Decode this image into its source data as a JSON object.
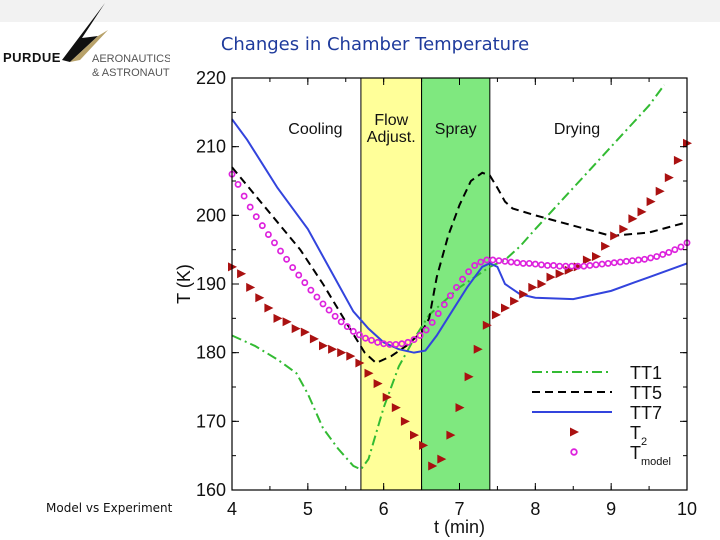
{
  "header": {
    "logo_mark": "PURDUE",
    "logo_line1": "AERONAUTICS",
    "logo_line2": "& ASTRONAUTICS",
    "slide_title": "Changes in Chamber Temperature"
  },
  "caption": "Model vs Experiment",
  "colors": {
    "cooling_bg": "#ffffff",
    "flow_adjust_bg": "#ffff99",
    "spray_bg": "#7fe87f",
    "tt1": "#33bb33",
    "tt5": "#000000",
    "tt7": "#3344dd",
    "t2": "#aa1111",
    "tmodel": "#dd22dd",
    "title": "#1f3b9c"
  },
  "chart_data": {
    "type": "line",
    "xlabel": "t (min)",
    "ylabel": "T (K)",
    "xlim": [
      4,
      10
    ],
    "ylim": [
      160,
      220
    ],
    "x_ticks": [
      "4",
      "5",
      "6",
      "7",
      "8",
      "9",
      "10"
    ],
    "y_ticks": [
      "160",
      "170",
      "180",
      "190",
      "200",
      "210",
      "220"
    ],
    "grid": false,
    "legend_position": "bottom-right",
    "phases": [
      {
        "label": "Cooling",
        "start": 4,
        "end": 5.7
      },
      {
        "label": "Flow Adjust.",
        "start": 5.7,
        "end": 6.5
      },
      {
        "label": "Spray",
        "start": 6.5,
        "end": 7.4
      },
      {
        "label": "Drying",
        "start": 7.4,
        "end": 10
      }
    ],
    "series": [
      {
        "name": "TT1",
        "style": "dashdot",
        "x": [
          4.0,
          4.3,
          4.6,
          4.85,
          5.0,
          5.2,
          5.4,
          5.6,
          5.7,
          5.8,
          6.0,
          6.2,
          6.4,
          6.6,
          6.8,
          7.0,
          7.2,
          7.4,
          7.6,
          7.8,
          8.0,
          8.5,
          9.0,
          9.5,
          9.7
        ],
        "y": [
          182.5,
          181,
          179,
          177,
          174,
          169,
          166,
          163.5,
          163,
          164.5,
          172,
          178,
          182,
          185.5,
          187.5,
          189.5,
          191,
          192.5,
          193.5,
          195.5,
          198,
          204,
          210,
          216,
          219
        ]
      },
      {
        "name": "TT5",
        "style": "dashed",
        "x": [
          4.0,
          4.3,
          4.6,
          4.9,
          5.2,
          5.5,
          5.75,
          5.9,
          6.1,
          6.3,
          6.5,
          6.6,
          6.7,
          6.85,
          7.0,
          7.15,
          7.3,
          7.4,
          7.5,
          7.6,
          7.7,
          8.0,
          8.5,
          9.0,
          9.5,
          10.0
        ],
        "y": [
          207,
          203,
          199,
          195,
          190,
          184.5,
          180,
          178.5,
          179.5,
          181,
          183,
          185,
          191,
          197,
          201.5,
          205,
          206.2,
          205.8,
          204,
          202,
          201,
          200,
          198.5,
          197,
          197.5,
          199
        ]
      },
      {
        "name": "TT7",
        "style": "solid",
        "x": [
          4.0,
          4.2,
          4.4,
          4.6,
          4.8,
          5.0,
          5.3,
          5.6,
          5.8,
          6.0,
          6.2,
          6.4,
          6.55,
          6.7,
          6.9,
          7.1,
          7.3,
          7.4,
          7.5,
          7.6,
          7.8,
          8.0,
          8.5,
          9.0,
          9.5,
          10.0
        ],
        "y": [
          214,
          211,
          207.5,
          204,
          201,
          198,
          192,
          186,
          183.5,
          181.5,
          180.5,
          180,
          180.3,
          182.5,
          186,
          189.5,
          192.5,
          193,
          192.5,
          190,
          188.5,
          188,
          187.8,
          189,
          191,
          193
        ]
      },
      {
        "name": "T2",
        "style": "triangle",
        "x": [
          4.0,
          4.12,
          4.24,
          4.36,
          4.48,
          4.6,
          4.72,
          4.84,
          4.96,
          5.08,
          5.2,
          5.32,
          5.44,
          5.56,
          5.68,
          5.8,
          5.92,
          6.04,
          6.16,
          6.28,
          6.4,
          6.52,
          6.64,
          6.76,
          6.88,
          7.0,
          7.12,
          7.24,
          7.36,
          7.48,
          7.6,
          7.72,
          7.84,
          7.96,
          8.08,
          8.2,
          8.32,
          8.44,
          8.56,
          8.68,
          8.8,
          8.92,
          9.04,
          9.16,
          9.28,
          9.4,
          9.52,
          9.64,
          9.76,
          9.88,
          10.0
        ],
        "y": [
          192.5,
          191.5,
          189.5,
          188,
          186.5,
          185,
          184.5,
          183.5,
          183,
          182,
          181,
          180.5,
          180,
          179.5,
          178.5,
          177,
          175.5,
          173.5,
          172,
          170,
          168,
          166.5,
          163.5,
          164.5,
          168,
          172,
          176.5,
          180.5,
          184,
          185.5,
          186.5,
          187.5,
          188.5,
          189.5,
          190,
          191,
          191.5,
          192,
          192.5,
          193.5,
          194,
          195.5,
          197,
          198,
          199.5,
          200.5,
          202,
          203.5,
          205.5,
          208,
          210.5
        ]
      },
      {
        "name": "Tmodel",
        "style": "circle",
        "x": [
          4.0,
          4.08,
          4.16,
          4.24,
          4.32,
          4.4,
          4.48,
          4.56,
          4.64,
          4.72,
          4.8,
          4.88,
          4.96,
          5.04,
          5.12,
          5.2,
          5.28,
          5.36,
          5.44,
          5.52,
          5.6,
          5.68,
          5.76,
          5.84,
          5.92,
          6.0,
          6.08,
          6.16,
          6.24,
          6.32,
          6.4,
          6.48,
          6.56,
          6.64,
          6.72,
          6.8,
          6.88,
          6.96,
          7.04,
          7.12,
          7.2,
          7.28,
          7.36,
          7.44,
          7.52,
          7.6,
          7.68,
          7.76,
          7.84,
          7.92,
          8.0,
          8.08,
          8.16,
          8.24,
          8.32,
          8.4,
          8.48,
          8.56,
          8.64,
          8.72,
          8.8,
          8.88,
          8.96,
          9.04,
          9.12,
          9.2,
          9.28,
          9.36,
          9.44,
          9.52,
          9.6,
          9.68,
          9.76,
          9.84,
          9.92,
          10.0
        ],
        "y": [
          206,
          204.5,
          202.8,
          201.2,
          199.8,
          198.5,
          197.2,
          196,
          194.8,
          193.6,
          192.4,
          191.3,
          190.2,
          189.1,
          188.1,
          187.1,
          186.2,
          185.3,
          184.5,
          183.8,
          183.1,
          182.6,
          182.1,
          181.8,
          181.5,
          181.3,
          181.2,
          181.2,
          181.3,
          181.5,
          181.9,
          182.5,
          183.3,
          184.4,
          185.7,
          187,
          188.3,
          189.5,
          190.7,
          191.8,
          192.7,
          193.2,
          193.5,
          193.5,
          193.4,
          193.3,
          193.2,
          193.1,
          193,
          193,
          192.9,
          192.8,
          192.7,
          192.7,
          192.6,
          192.6,
          192.6,
          192.6,
          192.6,
          192.7,
          192.8,
          192.9,
          193,
          193.1,
          193.2,
          193.3,
          193.4,
          193.5,
          193.6,
          193.8,
          194,
          194.3,
          194.6,
          195,
          195.4,
          196
        ]
      }
    ]
  }
}
